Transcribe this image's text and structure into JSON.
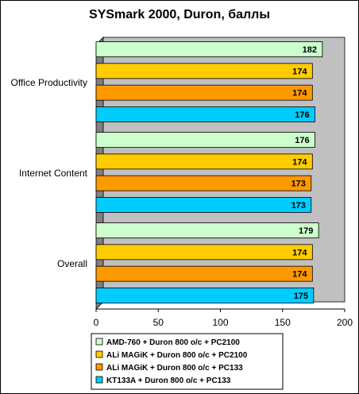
{
  "chart_data": {
    "type": "bar",
    "orientation": "horizontal",
    "title": "SYSmark 2000, Duron, баллы",
    "categories": [
      "Office Productivity",
      "Internet Content",
      "Overall"
    ],
    "series": [
      {
        "name": "AMD-760 + Duron 800 o/c + PC2100",
        "color": "#ccffcc",
        "values": [
          182,
          176,
          179
        ]
      },
      {
        "name": "ALi MAGiK + Duron 800 o/c + PC2100",
        "color": "#ffcc00",
        "values": [
          174,
          174,
          174
        ]
      },
      {
        "name": "ALi MAGiK + Duron 800 o/c + PC133",
        "color": "#ff9900",
        "values": [
          174,
          173,
          174
        ]
      },
      {
        "name": "KT133A + Duron 800 o/c + PC133",
        "color": "#00ccff",
        "values": [
          176,
          173,
          175
        ]
      }
    ],
    "xlim": [
      0,
      200
    ],
    "xticks": [
      0,
      50,
      100,
      150,
      200
    ],
    "grid": false,
    "legend_position": "bottom",
    "plot_background": "#c0c0c0"
  }
}
